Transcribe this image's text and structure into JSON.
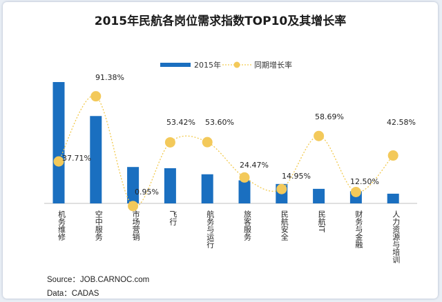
{
  "chart_data": {
    "type": "bar",
    "title": "2015年民航各岗位需求指数TOP10及其增长率",
    "legend": {
      "placement": "top",
      "bar_label": "2015年",
      "line_label": "同期增长率"
    },
    "categories": [
      "机务维修",
      "空中服务",
      "市场营销",
      "飞行",
      "航务与运行",
      "旅客服务",
      "民航安全",
      "民航IT",
      "财务与金融",
      "人力资源与培训"
    ],
    "series": [
      {
        "name": "2015年",
        "type": "bar",
        "values": [
          100,
          72,
          30,
          29,
          24,
          19,
          16,
          12,
          10,
          8
        ]
      },
      {
        "name": "同期增长率",
        "type": "line",
        "values": [
          37.71,
          91.38,
          0.95,
          53.42,
          53.6,
          24.47,
          14.95,
          58.69,
          12.5,
          42.58
        ],
        "labels": [
          "37.71%",
          "91.38%",
          "0.95%",
          "53.42%",
          "53.60%",
          "24.47%",
          "14.95%",
          "58.69%",
          "12.50%",
          "42.58%"
        ]
      }
    ],
    "bar_ylim": [
      0,
      100
    ],
    "line_ylim": [
      0,
      100
    ],
    "grid": false,
    "colors": {
      "bar": "#1a6fc0",
      "line": "#f2c94c",
      "marker": "#f3c95a"
    }
  },
  "footer": {
    "source": "Source：JOB.CARNOC.com",
    "data": "Data：CADAS"
  }
}
